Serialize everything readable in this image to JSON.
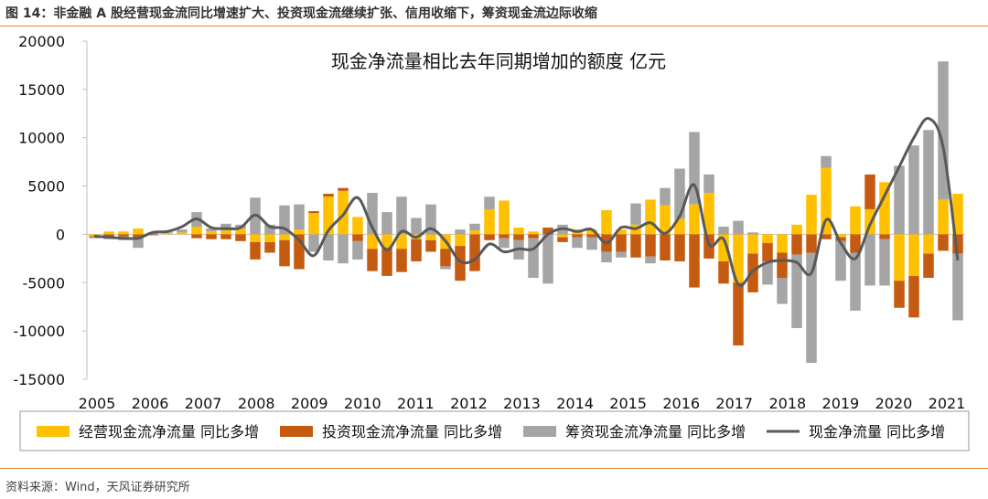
{
  "figure": {
    "title": "图 14：非金融 A 股经营现金流同比增速扩大、投资现金流继续扩张、信用收缩下，筹资现金流边际收缩",
    "source": "资料来源：Wind，天风证券研究所"
  },
  "chart_data": {
    "type": "bar",
    "title": "现金净流量相比去年同期增加的额度    亿元",
    "ylim": [
      -15000,
      20000
    ],
    "yticks": [
      -15000,
      -10000,
      -5000,
      0,
      5000,
      10000,
      15000,
      20000
    ],
    "ytick_labels": [
      "-15000",
      "-10000",
      "-5000",
      "0",
      "5000",
      "10000",
      "15000",
      "20000"
    ],
    "xtick_labels": [
      "2005",
      "2006",
      "2007",
      "2008",
      "2009",
      "2010",
      "2011",
      "2012",
      "2013",
      "2014",
      "2015",
      "2016",
      "2017",
      "2018",
      "2019",
      "2020",
      "2021"
    ],
    "legend_position": "bottom",
    "series": [
      {
        "name": "经营现金流净流量  同比多增",
        "kind": "bar",
        "color": "#ffc000",
        "values": [
          -200,
          300,
          300,
          600,
          0,
          100,
          200,
          800,
          300,
          400,
          600,
          -800,
          -800,
          -600,
          500,
          2200,
          3900,
          4500,
          1800,
          -1500,
          -1400,
          -1500,
          -500,
          -600,
          -1500,
          -1200,
          400,
          2600,
          3500,
          700,
          300,
          0,
          -300,
          500,
          500,
          2500,
          500,
          1000,
          3600,
          3000,
          1600,
          3100,
          4300,
          -2800,
          -5000,
          -2000,
          -900,
          -1900,
          1000,
          4100,
          6900,
          -300,
          2900,
          2600,
          5400,
          -4800,
          -4300,
          -2000,
          3600,
          4200
        ]
      },
      {
        "name": "投资现金流净流量  同比多增",
        "kind": "bar",
        "color": "#c55a11",
        "values": [
          -100,
          -200,
          -200,
          -300,
          -100,
          0,
          0,
          -400,
          -500,
          -500,
          -700,
          -1800,
          -1100,
          -2700,
          -3600,
          200,
          300,
          300,
          -700,
          -2300,
          -2900,
          -2400,
          -2300,
          -1200,
          -1800,
          -3600,
          -3800,
          -600,
          -400,
          -600,
          -400,
          700,
          -500,
          -300,
          -300,
          -1800,
          -1800,
          -2400,
          -2300,
          -2700,
          -2800,
          -5500,
          -2500,
          -2300,
          -6500,
          -4000,
          -1900,
          -2600,
          -2100,
          -1900,
          -500,
          -400,
          -1900,
          3600,
          -500,
          -2800,
          -4300,
          -2500,
          -1700,
          -2000
        ]
      },
      {
        "name": "筹资现金流净流量  同比多增",
        "kind": "bar",
        "color": "#a5a5a5",
        "values": [
          -100,
          -300,
          -400,
          -1100,
          200,
          100,
          300,
          1500,
          300,
          700,
          400,
          3800,
          1000,
          3000,
          2600,
          -1800,
          -2700,
          -3000,
          -1900,
          4300,
          2300,
          3900,
          1700,
          3100,
          -300,
          500,
          700,
          1300,
          -1000,
          -2000,
          -4100,
          -5100,
          1000,
          -1100,
          -1300,
          -1100,
          -600,
          2200,
          -700,
          1800,
          5200,
          7500,
          1900,
          800,
          1400,
          200,
          -2400,
          -2700,
          -7600,
          -11400,
          1200,
          -4100,
          -6000,
          -5300,
          -4800,
          7100,
          9200,
          10800,
          14300,
          -6900
        ]
      },
      {
        "name": "现金净流量  同比多增",
        "kind": "line",
        "color": "#595959",
        "values": [
          -200,
          -300,
          -400,
          -400,
          200,
          300,
          800,
          1600,
          700,
          600,
          700,
          2000,
          800,
          600,
          -600,
          -2200,
          400,
          2000,
          3800,
          700,
          -1600,
          300,
          -300,
          600,
          -700,
          -2800,
          -2600,
          -1000,
          -1800,
          -1500,
          -1500,
          0,
          600,
          300,
          500,
          -900,
          700,
          600,
          1200,
          100,
          1900,
          5100,
          -1000,
          -500,
          -5200,
          -3800,
          -2900,
          -2700,
          -2900,
          -4000,
          1500,
          -900,
          -2500,
          1000,
          4000,
          7000,
          10000,
          12000,
          9000,
          -2700
        ]
      }
    ]
  }
}
